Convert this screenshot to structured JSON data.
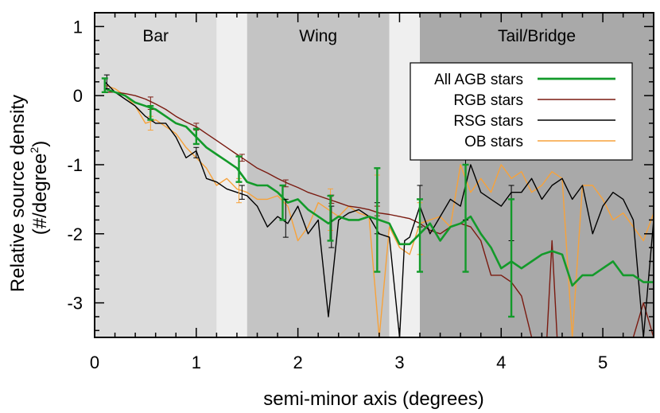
{
  "chart_data": {
    "type": "line",
    "xlabel": "semi-minor axis (degrees)",
    "ylabel_line1": "Relative source density",
    "ylabel_line2_prefix": "(#/degree",
    "ylabel_line2_sup": "2",
    "ylabel_line2_suffix": ")",
    "xlim": [
      0,
      5.5
    ],
    "ylim": [
      -3.5,
      1.2
    ],
    "x_ticks": [
      "0",
      "1",
      "2",
      "3",
      "4",
      "5"
    ],
    "y_ticks": [
      "1",
      "0",
      "-1",
      "-2",
      "-3"
    ],
    "legend_placement": "top-right",
    "regions": [
      {
        "label": "Bar",
        "x": [
          0,
          1.2
        ],
        "color": "#dcdcdc"
      },
      {
        "label": "",
        "x": [
          1.2,
          1.5
        ],
        "color": "#efefef"
      },
      {
        "label": "Wing",
        "x": [
          1.5,
          2.9
        ],
        "color": "#c4c4c4"
      },
      {
        "label": "",
        "x": [
          2.9,
          3.2
        ],
        "color": "#efefef"
      },
      {
        "label": "Tail/Bridge",
        "x": [
          3.2,
          5.5
        ],
        "color": "#a9a9a9"
      }
    ],
    "series": [
      {
        "name": "All AGB stars",
        "color": "#139a2a",
        "x": [
          0.1,
          0.2,
          0.3,
          0.4,
          0.5,
          0.6,
          0.7,
          0.8,
          0.9,
          1.0,
          1.1,
          1.2,
          1.3,
          1.4,
          1.5,
          1.6,
          1.7,
          1.8,
          1.9,
          2.0,
          2.1,
          2.2,
          2.3,
          2.4,
          2.5,
          2.6,
          2.7,
          2.8,
          2.9,
          3.0,
          3.1,
          3.2,
          3.3,
          3.4,
          3.5,
          3.6,
          3.7,
          3.8,
          3.9,
          4.0,
          4.1,
          4.2,
          4.3,
          4.4,
          4.5,
          4.6,
          4.7,
          4.8,
          4.9,
          5.0,
          5.1,
          5.2,
          5.3,
          5.4,
          5.5
        ],
        "y": [
          0.1,
          0.05,
          0.0,
          -0.1,
          -0.15,
          -0.2,
          -0.3,
          -0.4,
          -0.45,
          -0.6,
          -0.75,
          -0.85,
          -0.95,
          -1.05,
          -1.25,
          -1.3,
          -1.3,
          -1.4,
          -1.55,
          -1.5,
          -1.65,
          -1.75,
          -1.85,
          -1.75,
          -1.8,
          -1.8,
          -1.75,
          -1.8,
          -1.85,
          -2.15,
          -2.15,
          -2.0,
          -1.85,
          -2.1,
          -1.9,
          -1.85,
          -1.75,
          -2.0,
          -2.2,
          -2.5,
          -2.4,
          -2.5,
          -2.4,
          -2.3,
          -2.25,
          -2.3,
          -2.75,
          -2.6,
          -2.6,
          -2.5,
          -2.4,
          -2.6,
          -2.6,
          -2.7,
          -2.7
        ],
        "errors": [
          {
            "x": 0.1,
            "y": 0.05,
            "lo": 0.05,
            "hi": 0.25
          },
          {
            "x": 0.55,
            "y": -0.25,
            "lo": -0.35,
            "hi": -0.15
          },
          {
            "x": 1.0,
            "y": -0.6,
            "lo": -0.7,
            "hi": -0.48
          },
          {
            "x": 1.42,
            "y": -1.05,
            "lo": -1.25,
            "hi": -0.88
          },
          {
            "x": 1.85,
            "y": -1.55,
            "lo": -1.8,
            "hi": -1.3
          },
          {
            "x": 2.32,
            "y": -1.8,
            "lo": -2.1,
            "hi": -1.45
          },
          {
            "x": 2.78,
            "y": -1.8,
            "lo": -2.55,
            "hi": -1.05
          },
          {
            "x": 3.2,
            "y": -2.0,
            "lo": -2.55,
            "hi": -1.5
          },
          {
            "x": 3.65,
            "y": -1.7,
            "lo": -2.55,
            "hi": -1.0
          },
          {
            "x": 4.1,
            "y": -2.3,
            "lo": -3.2,
            "hi": -1.5
          }
        ]
      },
      {
        "name": "RGB stars",
        "color": "#7a1a10",
        "x": [
          0.1,
          0.2,
          0.3,
          0.4,
          0.5,
          0.6,
          0.7,
          0.8,
          0.9,
          1.0,
          1.1,
          1.2,
          1.3,
          1.4,
          1.5,
          1.6,
          1.7,
          1.8,
          1.9,
          2.0,
          2.1,
          2.2,
          2.3,
          2.4,
          2.5,
          2.6,
          2.7,
          2.8,
          2.9,
          3.0,
          3.1,
          3.2,
          3.3,
          3.4,
          3.5,
          3.6,
          3.7,
          3.8,
          3.9,
          4.0,
          4.1,
          4.2,
          4.3,
          4.4,
          4.45,
          4.5,
          4.55,
          4.6,
          4.7,
          4.8,
          4.9,
          5.0,
          5.1,
          5.2,
          5.3,
          5.4,
          5.5
        ],
        "y": [
          0.05,
          0.05,
          0.03,
          0.0,
          -0.05,
          -0.12,
          -0.2,
          -0.3,
          -0.38,
          -0.45,
          -0.55,
          -0.65,
          -0.75,
          -0.85,
          -0.95,
          -1.05,
          -1.12,
          -1.2,
          -1.27,
          -1.33,
          -1.4,
          -1.45,
          -1.5,
          -1.55,
          -1.6,
          -1.62,
          -1.65,
          -1.7,
          -1.72,
          -1.75,
          -1.78,
          -1.85,
          -1.95,
          -2.0,
          -1.9,
          -1.85,
          -1.9,
          -2.1,
          -2.6,
          -2.6,
          -2.7,
          -2.9,
          -3.5,
          -3.5,
          -3.6,
          -2.1,
          -3.6,
          -3.6,
          -3.6,
          -3.6,
          -3.6,
          -3.6,
          -3.6,
          -3.6,
          -3.6,
          -3.0,
          -3.5
        ],
        "errors": [
          {
            "x": 0.55,
            "y": -0.1,
            "lo": -0.2,
            "hi": -0.02
          },
          {
            "x": 1.0,
            "y": -0.45,
            "lo": -0.5,
            "hi": -0.4
          },
          {
            "x": 1.45,
            "y": -0.9,
            "lo": -0.95,
            "hi": -0.85
          },
          {
            "x": 1.88,
            "y": -1.27,
            "lo": -1.32,
            "hi": -1.22
          },
          {
            "x": 2.33,
            "y": -1.5,
            "lo": -1.56,
            "hi": -1.44
          },
          {
            "x": 2.78,
            "y": -1.67,
            "lo": -1.74,
            "hi": -1.6
          }
        ]
      },
      {
        "name": "RSG stars",
        "color": "#000000",
        "x": [
          0.1,
          0.2,
          0.3,
          0.4,
          0.5,
          0.6,
          0.7,
          0.8,
          0.9,
          1.0,
          1.1,
          1.2,
          1.3,
          1.4,
          1.5,
          1.6,
          1.7,
          1.8,
          1.9,
          2.0,
          2.1,
          2.2,
          2.3,
          2.4,
          2.5,
          2.6,
          2.7,
          2.8,
          2.9,
          3.0,
          3.05,
          3.1,
          3.2,
          3.3,
          3.4,
          3.5,
          3.6,
          3.7,
          3.8,
          3.9,
          4.0,
          4.1,
          4.2,
          4.3,
          4.4,
          4.5,
          4.6,
          4.7,
          4.8,
          4.9,
          5.0,
          5.1,
          5.2,
          5.3,
          5.4,
          5.5
        ],
        "y": [
          0.2,
          0.05,
          -0.05,
          -0.15,
          -0.3,
          -0.4,
          -0.4,
          -0.6,
          -0.9,
          -0.8,
          -1.2,
          -1.25,
          -1.35,
          -1.4,
          -1.45,
          -1.6,
          -1.9,
          -1.75,
          -1.85,
          -1.6,
          -2.0,
          -1.8,
          -3.2,
          -1.8,
          -1.7,
          -1.65,
          -1.75,
          -2.0,
          -2.05,
          -3.6,
          -2.1,
          -2.05,
          -1.6,
          -2.0,
          -1.75,
          -1.5,
          -1.6,
          -1.0,
          -1.4,
          -1.5,
          -1.6,
          -1.4,
          -1.4,
          -1.2,
          -1.5,
          -1.3,
          -1.2,
          -1.5,
          -1.3,
          -2.0,
          -1.6,
          -1.4,
          -1.5,
          -1.8,
          -3.5,
          -1.8
        ],
        "errors": [
          {
            "x": 0.12,
            "y": 0.2,
            "lo": 0.1,
            "hi": 0.3
          },
          {
            "x": 1.0,
            "y": -0.8,
            "lo": -0.9,
            "hi": -0.75
          },
          {
            "x": 1.45,
            "y": -1.4,
            "lo": -1.5,
            "hi": -1.3
          },
          {
            "x": 1.88,
            "y": -1.75,
            "lo": -2.05,
            "hi": -1.5
          },
          {
            "x": 2.33,
            "y": -1.85,
            "lo": -2.2,
            "hi": -1.6
          },
          {
            "x": 2.78,
            "y": -1.75,
            "lo": -2.0,
            "hi": -1.55
          },
          {
            "x": 3.2,
            "y": -1.6,
            "lo": -1.9,
            "hi": -1.3
          },
          {
            "x": 3.65,
            "y": -1.3,
            "lo": -1.8,
            "hi": -0.9
          },
          {
            "x": 4.1,
            "y": -1.6,
            "lo": -2.1,
            "hi": -1.3
          }
        ]
      },
      {
        "name": "OB stars",
        "color": "#f7a23a",
        "x": [
          0.1,
          0.2,
          0.3,
          0.4,
          0.5,
          0.6,
          0.7,
          0.8,
          0.9,
          1.0,
          1.1,
          1.2,
          1.3,
          1.4,
          1.5,
          1.6,
          1.7,
          1.8,
          1.9,
          2.0,
          2.1,
          2.2,
          2.3,
          2.4,
          2.5,
          2.6,
          2.7,
          2.8,
          2.9,
          3.0,
          3.1,
          3.2,
          3.3,
          3.4,
          3.5,
          3.6,
          3.7,
          3.8,
          3.9,
          4.0,
          4.1,
          4.2,
          4.3,
          4.4,
          4.5,
          4.6,
          4.7,
          4.8,
          4.9,
          5.0,
          5.1,
          5.2,
          5.3,
          5.4,
          5.5
        ],
        "y": [
          0.15,
          0.1,
          0.0,
          -0.15,
          -0.4,
          -0.35,
          -0.45,
          -0.55,
          -0.75,
          -0.9,
          -1.05,
          -1.3,
          -1.2,
          -1.35,
          -1.4,
          -1.5,
          -1.5,
          -1.45,
          -1.6,
          -2.1,
          -1.9,
          -1.55,
          -1.65,
          -1.75,
          -1.6,
          -1.7,
          -1.75,
          -3.6,
          -1.9,
          -2.2,
          -2.3,
          -1.85,
          -1.8,
          -1.75,
          -1.9,
          -1.0,
          -1.4,
          -1.2,
          -1.4,
          -1.0,
          -1.2,
          -1.1,
          -1.4,
          -1.3,
          -1.1,
          -1.2,
          -3.6,
          -1.3,
          -1.3,
          -1.5,
          -1.8,
          -1.7,
          -1.9,
          -2.1,
          -1.7
        ],
        "errors": [
          {
            "x": 0.55,
            "y": -0.4,
            "lo": -0.5,
            "hi": -0.3
          },
          {
            "x": 1.42,
            "y": -1.35,
            "lo": -1.55,
            "hi": -1.2
          },
          {
            "x": 2.32,
            "y": -1.65,
            "lo": -1.95,
            "hi": -1.35
          },
          {
            "x": 2.78,
            "y": -1.3,
            "lo": -1.6,
            "hi": -1.15
          },
          {
            "x": 3.2,
            "y": -1.85,
            "lo": -2.3,
            "hi": -1.55
          }
        ]
      }
    ]
  }
}
